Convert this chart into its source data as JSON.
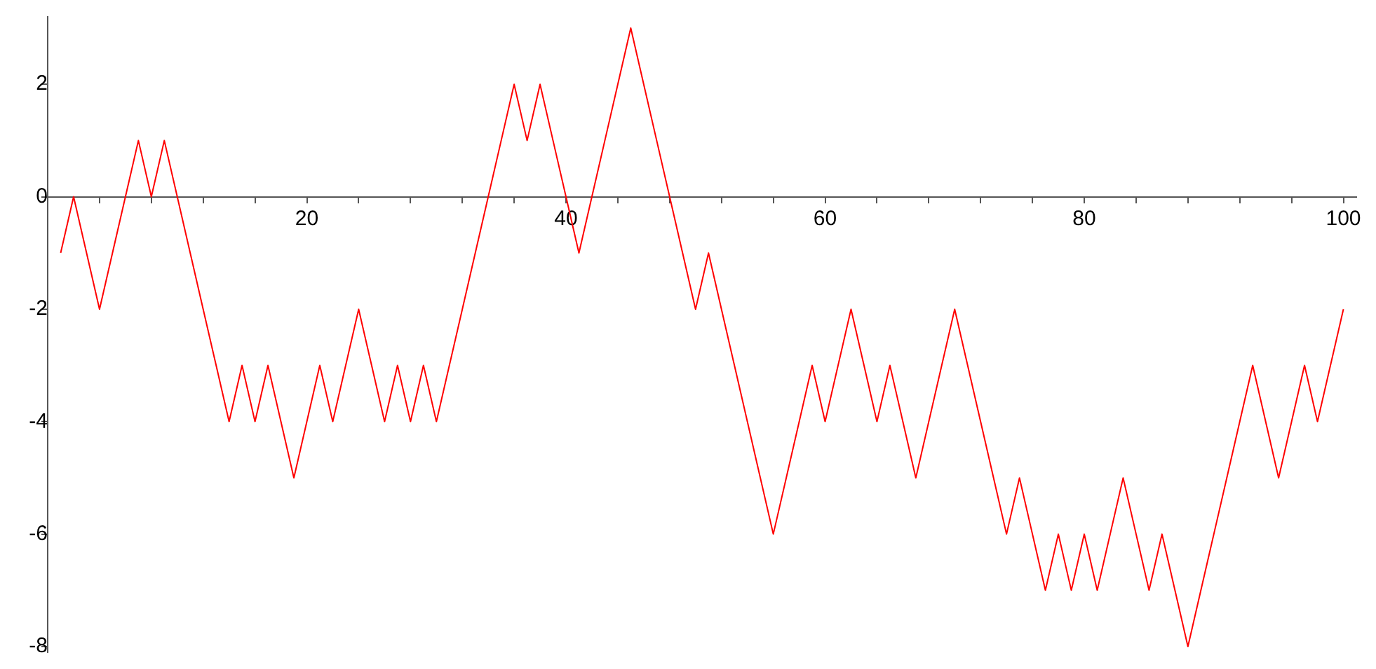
{
  "chart_data": {
    "type": "line",
    "x": [
      1,
      2,
      3,
      4,
      5,
      6,
      7,
      8,
      9,
      10,
      11,
      12,
      13,
      14,
      15,
      16,
      17,
      18,
      19,
      20,
      21,
      22,
      23,
      24,
      25,
      26,
      27,
      28,
      29,
      30,
      31,
      32,
      33,
      34,
      35,
      36,
      37,
      38,
      39,
      40,
      41,
      42,
      43,
      44,
      45,
      46,
      47,
      48,
      49,
      50,
      51,
      52,
      53,
      54,
      55,
      56,
      57,
      58,
      59,
      60,
      61,
      62,
      63,
      64,
      65,
      66,
      67,
      68,
      69,
      70,
      71,
      72,
      73,
      74,
      75,
      76,
      77,
      78,
      79,
      80,
      81,
      82,
      83,
      84,
      85,
      86,
      87,
      88,
      89,
      90,
      91,
      92,
      93,
      94,
      95,
      96,
      97,
      98,
      99,
      100
    ],
    "series": [
      {
        "color": "#ff0000",
        "values": [
          -1,
          0,
          -1,
          -2,
          -1,
          0,
          1,
          0,
          1,
          0,
          -1,
          -2,
          -3,
          -4,
          -3,
          -4,
          -3,
          -4,
          -5,
          -4,
          -3,
          -4,
          -3,
          -2,
          -3,
          -4,
          -3,
          -4,
          -3,
          -4,
          -3,
          -2,
          -1,
          0,
          1,
          2,
          1,
          2,
          1,
          0,
          -1,
          0,
          1,
          2,
          3,
          2,
          1,
          0,
          -1,
          -2,
          -1,
          -2,
          -3,
          -4,
          -5,
          -6,
          -5,
          -4,
          -3,
          -4,
          -3,
          -2,
          -3,
          -4,
          -3,
          -4,
          -5,
          -4,
          -3,
          -2,
          -3,
          -4,
          -5,
          -6,
          -5,
          -6,
          -7,
          -6,
          -7,
          -6,
          -7,
          -6,
          -5,
          -6,
          -7,
          -6,
          -7,
          -8,
          -7,
          -6,
          -5,
          -4,
          -3,
          -4,
          -5,
          -4,
          -3,
          -4,
          -3,
          -2
        ]
      }
    ],
    "xlim": [
      0,
      101
    ],
    "xticks": [
      {
        "value": 4,
        "label": null
      },
      {
        "value": 8,
        "label": null
      },
      {
        "value": 12,
        "label": null
      },
      {
        "value": 16,
        "label": null
      },
      20,
      {
        "value": 24,
        "label": null
      },
      {
        "value": 28,
        "label": null
      },
      {
        "value": 32,
        "label": null
      },
      {
        "value": 36,
        "label": null
      },
      40,
      {
        "value": 44,
        "label": null
      },
      {
        "value": 48,
        "label": null
      },
      {
        "value": 52,
        "label": null
      },
      {
        "value": 56,
        "label": null
      },
      60,
      {
        "value": 64,
        "label": null
      },
      {
        "value": 68,
        "label": null
      },
      {
        "value": 72,
        "label": null
      },
      {
        "value": 76,
        "label": null
      },
      80,
      {
        "value": 84,
        "label": null
      },
      {
        "value": 88,
        "label": null
      },
      {
        "value": 92,
        "label": null
      },
      {
        "value": 96,
        "label": null
      },
      100
    ],
    "ylim": [
      -8.1,
      3.2
    ],
    "yticks": [
      -8,
      -6,
      -4,
      -2,
      0,
      2
    ],
    "grid": false,
    "legend": false,
    "marker": "none",
    "line_style": "solid"
  }
}
